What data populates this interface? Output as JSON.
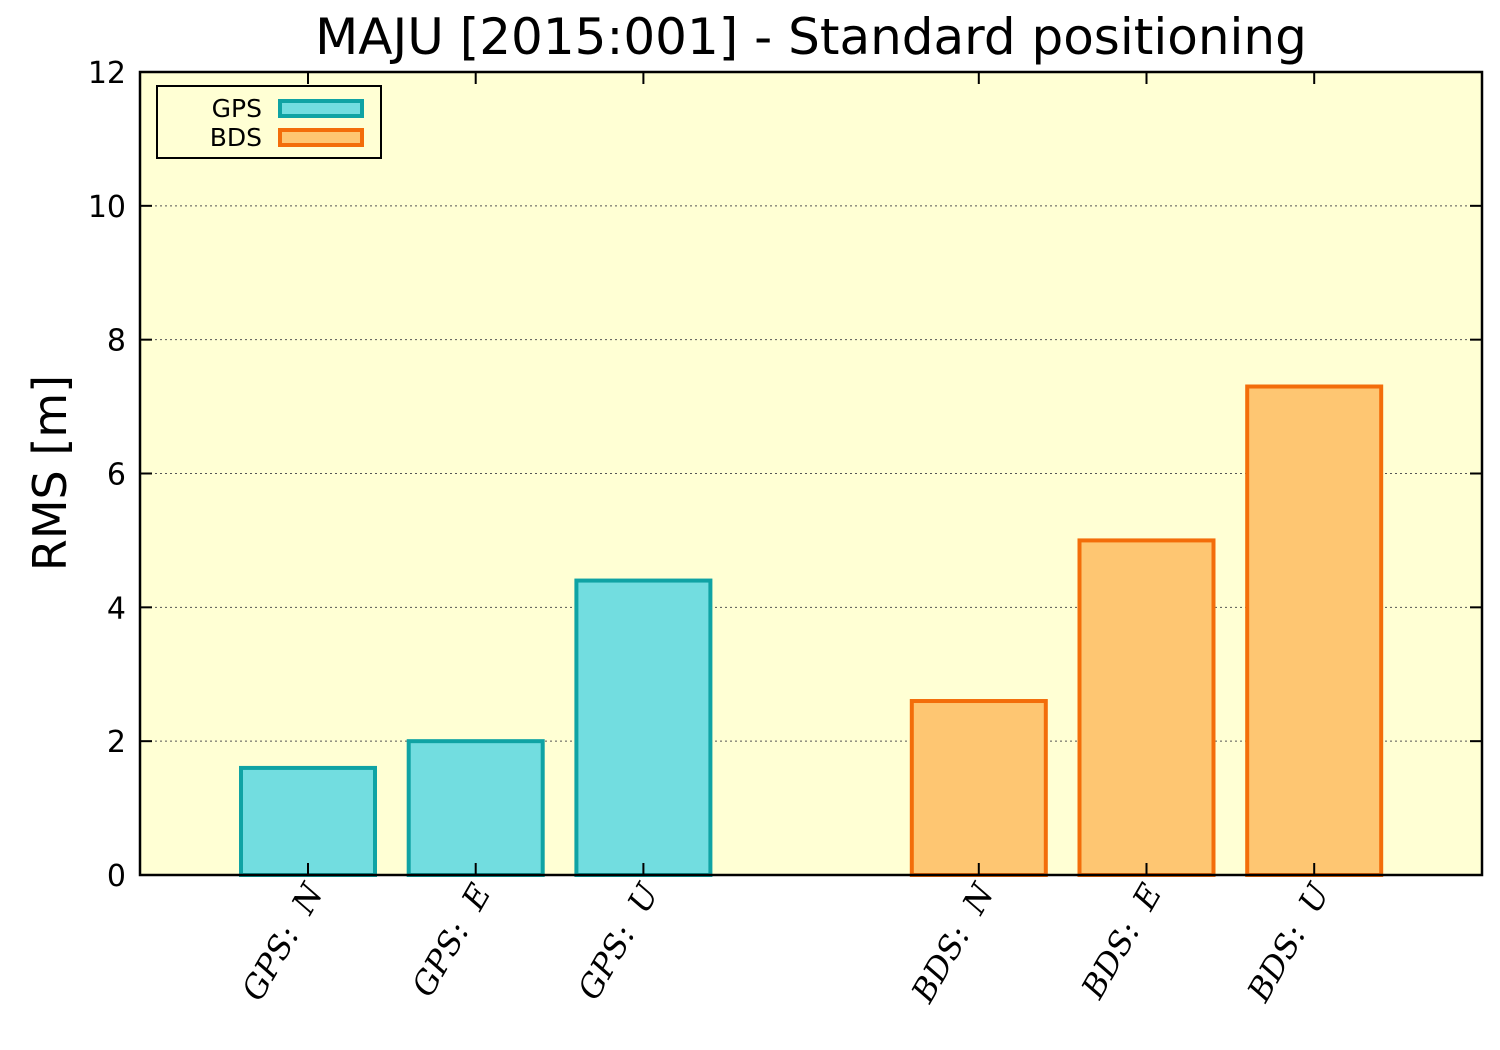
{
  "chart_data": {
    "type": "bar",
    "title": "MAJU [2015:001] - Standard positioning",
    "ylabel": "RMS [m]",
    "ylim": [
      0,
      12
    ],
    "yticks": [
      "0",
      "2",
      "4",
      "6",
      "8",
      "10",
      "12"
    ],
    "grid": true,
    "legend_position": "top-left",
    "categories": [
      "GPS:  N",
      "GPS:  E",
      "GPS:  U",
      "BDS:  N",
      "BDS:  E",
      "BDS:  U"
    ],
    "series": [
      {
        "name": "GPS",
        "fill": "#72dde0",
        "stroke": "#0fa3a4",
        "values": [
          1.6,
          2.0,
          4.4,
          null,
          null,
          null
        ]
      },
      {
        "name": "BDS",
        "fill": "#fec672",
        "stroke": "#f36d0a",
        "values": [
          null,
          null,
          null,
          2.6,
          5.0,
          7.3
        ]
      }
    ],
    "colors": {
      "plot_background": "#ffffd4",
      "grid": "#555555"
    }
  }
}
